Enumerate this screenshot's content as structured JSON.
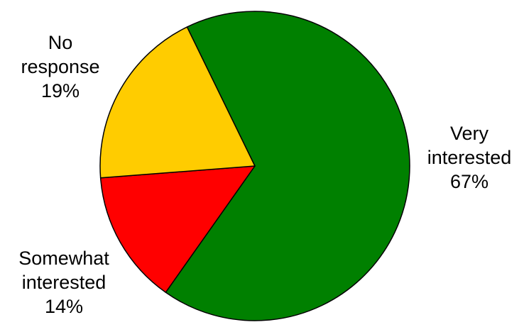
{
  "chart_data": {
    "type": "pie",
    "slices": [
      {
        "label_lines": [
          "Very",
          "interested"
        ],
        "pct_text": "67%",
        "value": 67,
        "color": "#008000"
      },
      {
        "label_lines": [
          "Somewhat",
          "interested"
        ],
        "pct_text": "14%",
        "value": 14,
        "color": "#FF0000"
      },
      {
        "label_lines": [
          "No",
          "response"
        ],
        "pct_text": "19%",
        "value": 19,
        "color": "#FFCC00"
      }
    ],
    "start_angle_deg": -116,
    "outline_color": "#000000"
  }
}
